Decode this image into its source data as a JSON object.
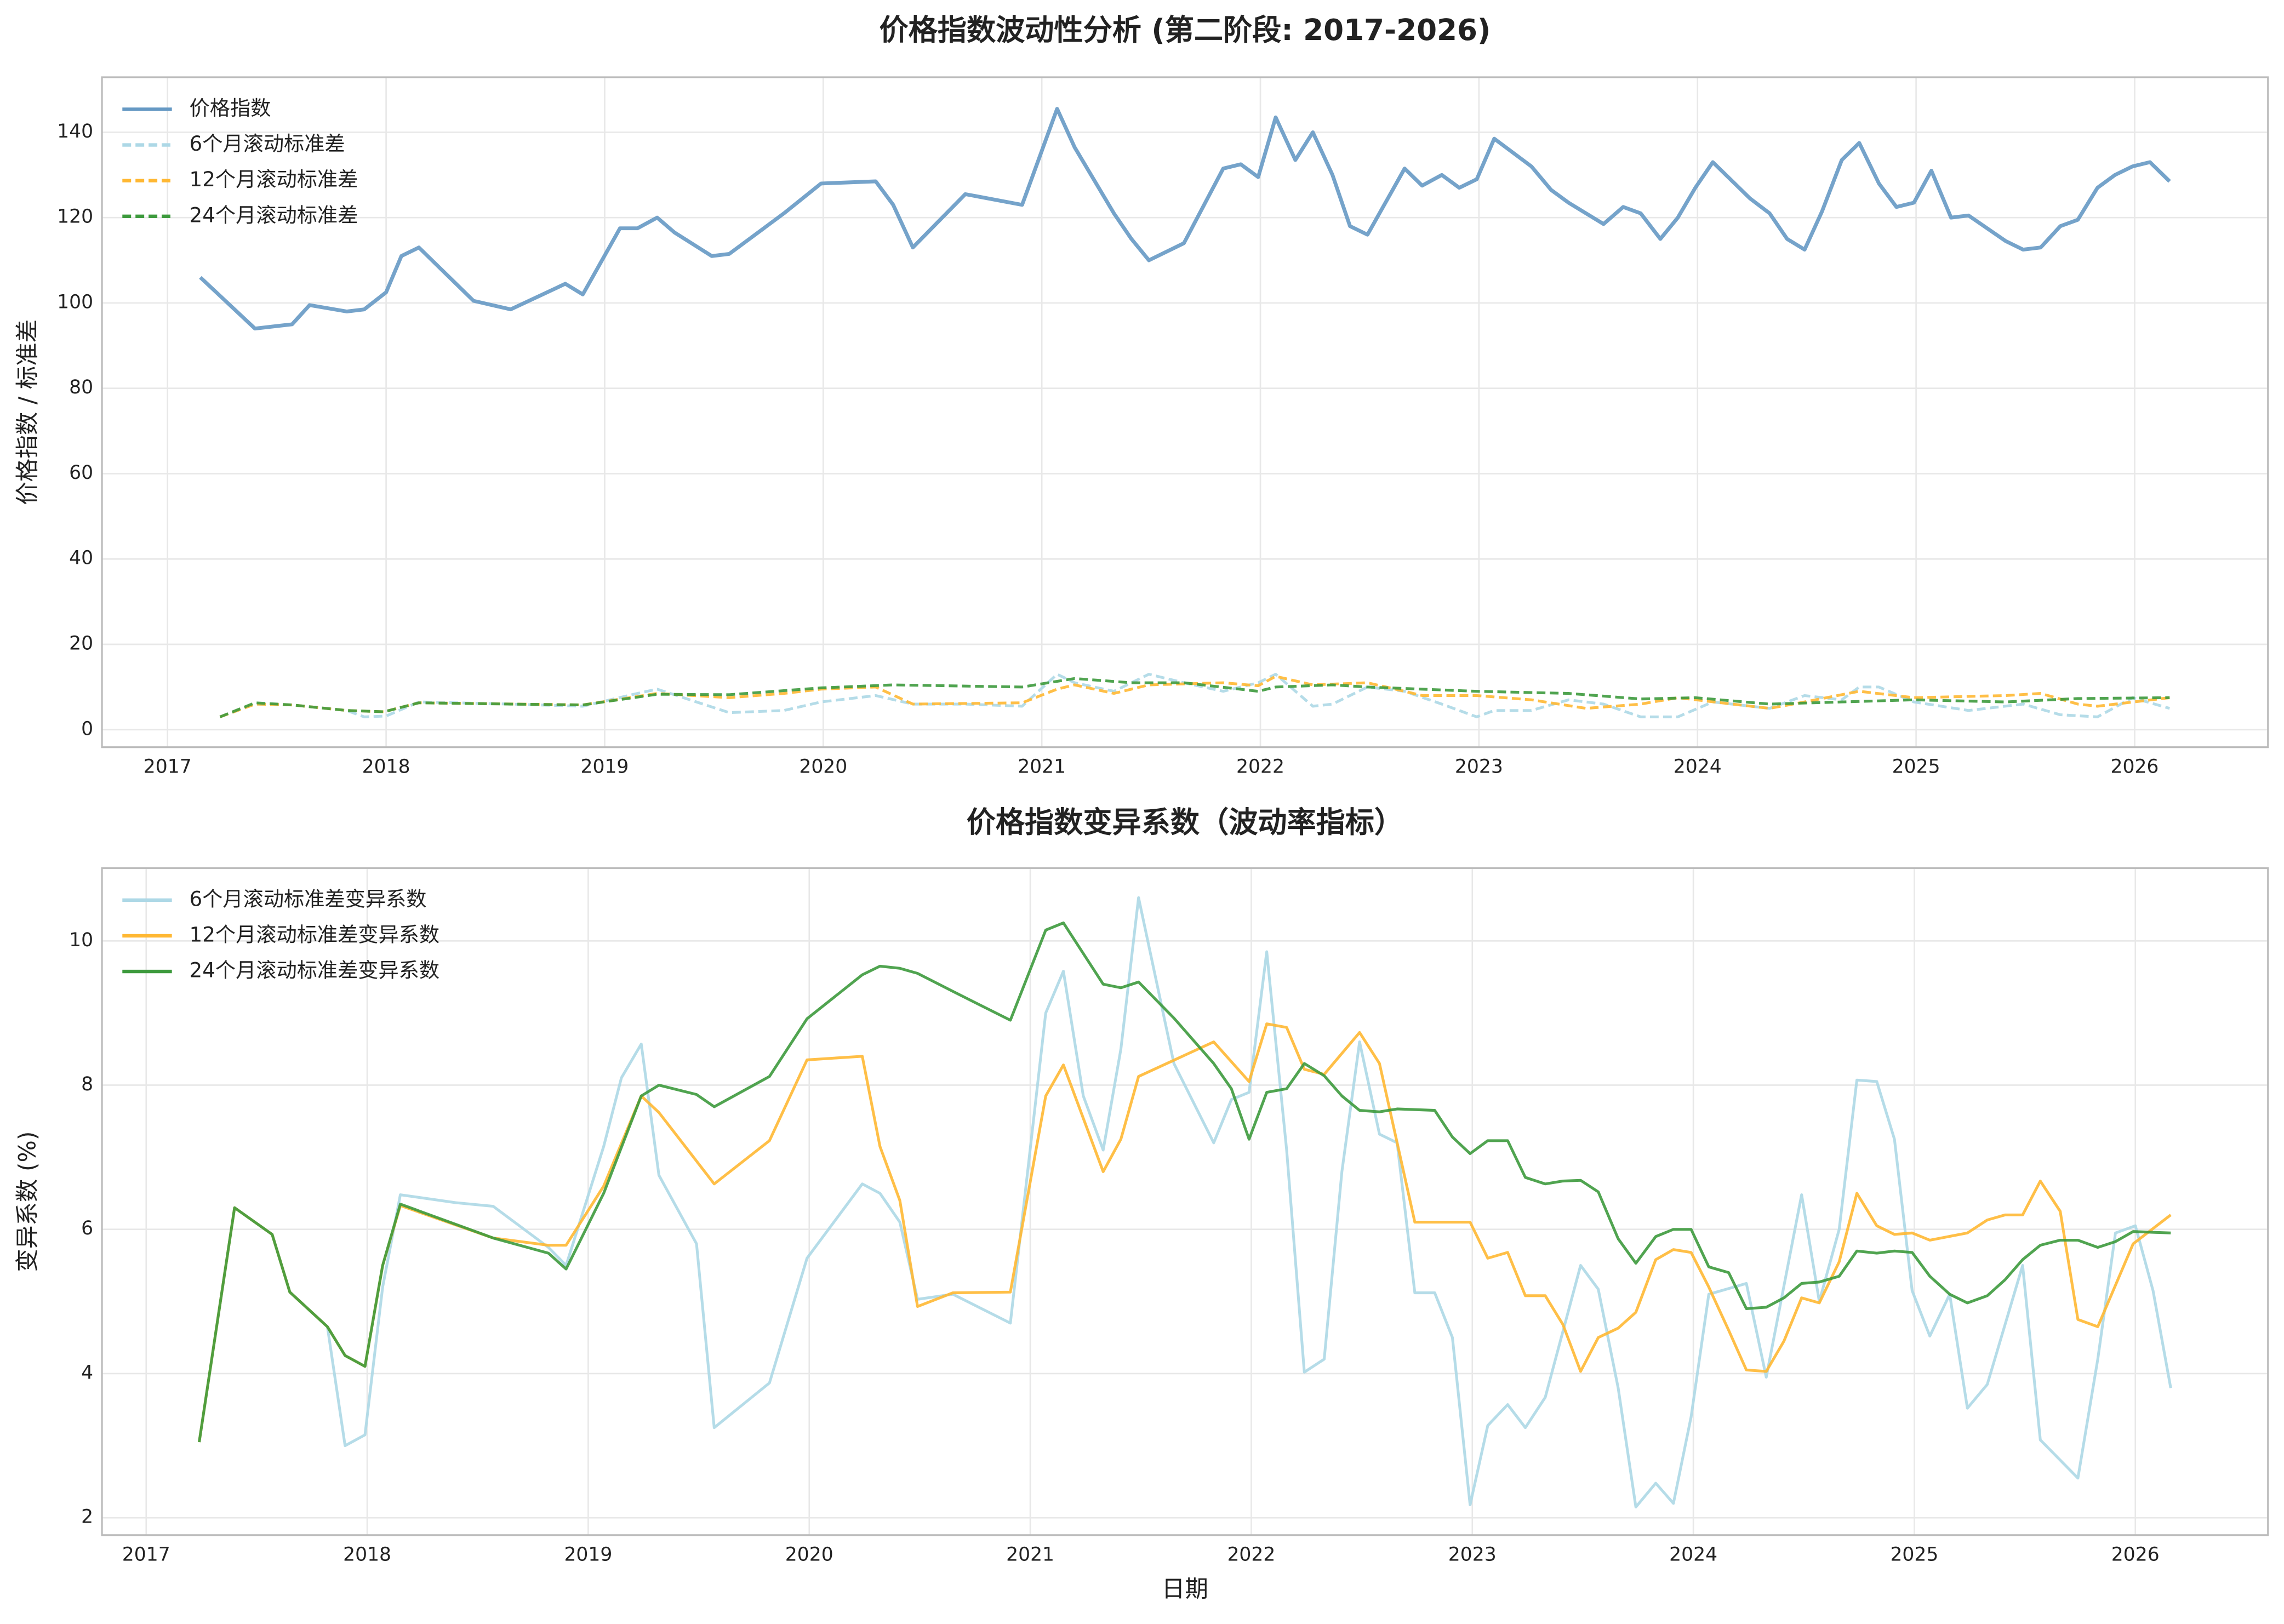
{
  "chart_data": [
    {
      "type": "line",
      "title": "价格指数波动性分析 (第二阶段: 2017-2026)",
      "ylabel": "价格指数 / 标准差",
      "xlim": [
        2016.7,
        2026.61
      ],
      "ylim": [
        -4.1,
        152.9
      ],
      "xticks": [
        2017,
        2018,
        2019,
        2020,
        2021,
        2022,
        2023,
        2024,
        2025,
        2026
      ],
      "yticks": [
        0,
        20,
        40,
        60,
        80,
        100,
        120,
        140
      ],
      "grid": true,
      "legend": "upper-left",
      "series": [
        {
          "name": "价格指数",
          "color": "#6699c4",
          "dash": false,
          "x": [
            2017.15,
            2017.4,
            2017.57,
            2017.65,
            2017.82,
            2017.9,
            2018.0,
            2018.07,
            2018.15,
            2018.4,
            2018.57,
            2018.82,
            2018.9,
            2019.07,
            2019.15,
            2019.24,
            2019.32,
            2019.49,
            2019.57,
            2019.82,
            2019.99,
            2020.24,
            2020.32,
            2020.41,
            2020.65,
            2020.91,
            2021.07,
            2021.15,
            2021.33,
            2021.41,
            2021.49,
            2021.65,
            2021.83,
            2021.91,
            2021.99,
            2022.07,
            2022.16,
            2022.24,
            2022.33,
            2022.41,
            2022.49,
            2022.66,
            2022.74,
            2022.83,
            2022.91,
            2022.99,
            2023.07,
            2023.24,
            2023.33,
            2023.41,
            2023.57,
            2023.66,
            2023.74,
            2023.83,
            2023.91,
            2023.99,
            2024.07,
            2024.16,
            2024.24,
            2024.33,
            2024.41,
            2024.49,
            2024.57,
            2024.66,
            2024.74,
            2024.83,
            2024.91,
            2024.99,
            2025.07,
            2025.16,
            2025.24,
            2025.41,
            2025.49,
            2025.57,
            2025.66,
            2025.74,
            2025.83,
            2025.91,
            2025.99,
            2026.07,
            2026.16
          ],
          "values": [
            106,
            94,
            95,
            99.5,
            98,
            98.5,
            102.5,
            111,
            113,
            100.5,
            98.5,
            104.5,
            102,
            117.5,
            117.5,
            120,
            116.5,
            111,
            111.5,
            121,
            128,
            128.5,
            123,
            113,
            125.5,
            123,
            145.5,
            136.5,
            121,
            115,
            110,
            114,
            131.5,
            132.5,
            129.5,
            143.5,
            133.5,
            140,
            130,
            118,
            116,
            131.5,
            127.5,
            130,
            127,
            129,
            138.5,
            132,
            126.5,
            123.5,
            118.5,
            122.5,
            121,
            115,
            120,
            127,
            133,
            128.5,
            124.5,
            121,
            115,
            112.5,
            121.5,
            133.5,
            137.5,
            128,
            122.5,
            123.5,
            131,
            120,
            120.5,
            114.5,
            112.5,
            113,
            118,
            119.5,
            127,
            130,
            132,
            133,
            128.5
          ]
        },
        {
          "name": "6个月滚动标准差",
          "color": "#add8e6",
          "dash": true,
          "x": [
            2017.24,
            2017.4,
            2017.57,
            2017.82,
            2017.9,
            2018.0,
            2018.15,
            2018.57,
            2018.9,
            2019.15,
            2019.24,
            2019.57,
            2019.82,
            2019.99,
            2020.24,
            2020.41,
            2020.65,
            2020.91,
            2021.07,
            2021.15,
            2021.33,
            2021.49,
            2021.65,
            2021.83,
            2021.99,
            2022.07,
            2022.24,
            2022.33,
            2022.49,
            2022.66,
            2022.83,
            2022.99,
            2023.07,
            2023.24,
            2023.41,
            2023.57,
            2023.74,
            2023.91,
            2024.07,
            2024.33,
            2024.49,
            2024.66,
            2024.74,
            2024.83,
            2024.99,
            2025.24,
            2025.49,
            2025.66,
            2025.83,
            2025.99,
            2026.16
          ],
          "values": [
            3,
            6,
            5.8,
            4.5,
            3,
            3.2,
            6.5,
            6,
            5.5,
            8.5,
            9.5,
            4,
            4.5,
            6.5,
            8,
            6,
            6,
            5.5,
            13,
            11,
            9,
            13,
            11,
            9,
            11,
            13,
            5.5,
            6,
            10,
            9,
            6,
            3,
            4.5,
            4.5,
            7,
            6,
            3,
            3,
            6.5,
            5,
            8,
            7,
            10,
            10,
            6.5,
            4.5,
            6,
            3.5,
            3,
            7.5,
            5
          ]
        },
        {
          "name": "12个月滚动标准差",
          "color": "#ffb833",
          "dash": true,
          "x": [
            2017.24,
            2017.4,
            2017.57,
            2017.82,
            2017.99,
            2018.15,
            2018.9,
            2019.24,
            2019.57,
            2019.82,
            2019.99,
            2020.24,
            2020.41,
            2020.91,
            2021.07,
            2021.15,
            2021.33,
            2021.49,
            2021.83,
            2021.99,
            2022.07,
            2022.24,
            2022.49,
            2022.66,
            2022.74,
            2022.99,
            2023.24,
            2023.49,
            2023.74,
            2023.91,
            2024.16,
            2024.33,
            2024.49,
            2024.74,
            2024.99,
            2025.41,
            2025.57,
            2025.74,
            2025.83,
            2026.16
          ],
          "values": [
            3,
            6,
            5.8,
            4.5,
            4.2,
            6.3,
            5.8,
            8.5,
            7.5,
            8.5,
            9.5,
            10,
            6,
            6.3,
            9.5,
            10.5,
            8.5,
            10.5,
            11,
            10.3,
            12.5,
            10.5,
            11,
            9,
            8,
            8,
            7,
            5,
            6,
            7.5,
            6,
            5,
            6.5,
            9,
            7.5,
            8,
            8.5,
            6,
            5.5,
            7.5
          ]
        },
        {
          "name": "24个月滚动标准差",
          "color": "#3d9a3d",
          "dash": true,
          "x": [
            2017.24,
            2017.4,
            2017.57,
            2017.82,
            2017.99,
            2018.15,
            2018.57,
            2018.9,
            2019.24,
            2019.57,
            2019.99,
            2020.32,
            2020.91,
            2021.15,
            2021.41,
            2021.65,
            2021.99,
            2022.07,
            2022.33,
            2022.49,
            2022.99,
            2023.41,
            2023.74,
            2023.99,
            2024.33,
            2024.66,
            2024.99,
            2025.41,
            2025.74,
            2026.16
          ],
          "values": [
            3,
            6.3,
            5.8,
            4.5,
            4.2,
            6.3,
            6,
            5.8,
            8.3,
            8.2,
            9.8,
            10.5,
            10,
            12,
            11,
            11,
            9,
            10,
            10.5,
            10,
            9,
            8.5,
            7.2,
            7.5,
            6,
            6.5,
            7,
            6.5,
            7.3,
            7.5
          ]
        }
      ]
    },
    {
      "type": "line",
      "title": "价格指数变异系数（波动率指标）",
      "xlabel": "日期",
      "ylabel": "变异系数 (%)",
      "xlim": [
        2016.8,
        2026.6
      ],
      "ylim": [
        1.76,
        11.01
      ],
      "xticks": [
        2017,
        2018,
        2019,
        2020,
        2021,
        2022,
        2023,
        2024,
        2025,
        2026
      ],
      "yticks": [
        2,
        4,
        6,
        8,
        10
      ],
      "grid": true,
      "legend": "upper-left",
      "series": [
        {
          "name": "6个月滚动标准差变异系数",
          "color": "#add8e6",
          "dash": false,
          "x": [
            2017.24,
            2017.4,
            2017.57,
            2017.65,
            2017.82,
            2017.9,
            2017.99,
            2018.07,
            2018.15,
            2018.4,
            2018.57,
            2018.82,
            2018.9,
            2019.07,
            2019.15,
            2019.24,
            2019.32,
            2019.49,
            2019.57,
            2019.82,
            2019.99,
            2020.24,
            2020.32,
            2020.41,
            2020.49,
            2020.65,
            2020.91,
            2021.07,
            2021.15,
            2021.24,
            2021.33,
            2021.41,
            2021.49,
            2021.65,
            2021.83,
            2021.91,
            2021.99,
            2022.07,
            2022.16,
            2022.24,
            2022.33,
            2022.41,
            2022.49,
            2022.58,
            2022.66,
            2022.74,
            2022.83,
            2022.91,
            2022.99,
            2023.07,
            2023.16,
            2023.24,
            2023.33,
            2023.49,
            2023.57,
            2023.66,
            2023.74,
            2023.83,
            2023.91,
            2023.99,
            2024.07,
            2024.24,
            2024.33,
            2024.49,
            2024.57,
            2024.66,
            2024.74,
            2024.83,
            2024.91,
            2024.99,
            2025.07,
            2025.16,
            2025.24,
            2025.33,
            2025.49,
            2025.57,
            2025.66,
            2025.74,
            2025.83,
            2025.91,
            2026.0,
            2026.08,
            2026.16
          ],
          "values": [
            3.05,
            6.3,
            5.93,
            5.13,
            4.65,
            3.0,
            3.15,
            5.2,
            6.48,
            6.37,
            6.32,
            5.75,
            5.5,
            7.15,
            8.1,
            8.57,
            6.75,
            5.8,
            3.25,
            3.87,
            5.6,
            6.63,
            6.5,
            6.1,
            5.03,
            5.1,
            4.7,
            9.0,
            9.58,
            7.85,
            7.1,
            8.5,
            10.6,
            8.3,
            7.2,
            7.8,
            7.9,
            9.85,
            7.1,
            4.02,
            4.2,
            6.8,
            8.6,
            7.32,
            7.2,
            5.12,
            5.12,
            4.5,
            2.18,
            3.28,
            3.57,
            3.25,
            3.67,
            5.5,
            5.17,
            3.8,
            2.15,
            2.48,
            2.2,
            3.4,
            5.1,
            5.25,
            3.95,
            6.48,
            5.0,
            6.0,
            8.07,
            8.05,
            7.25,
            5.15,
            4.52,
            5.1,
            3.52,
            3.85,
            5.5,
            3.08,
            2.8,
            2.55,
            4.2,
            5.95,
            6.05,
            5.15,
            3.8
          ]
        },
        {
          "name": "12个月滚动标准差变异系数",
          "color": "#ffb833",
          "dash": false,
          "x": [
            2017.24,
            2017.4,
            2017.57,
            2017.65,
            2017.82,
            2017.9,
            2017.99,
            2018.07,
            2018.15,
            2018.57,
            2018.82,
            2018.9,
            2019.07,
            2019.24,
            2019.32,
            2019.57,
            2019.82,
            2019.99,
            2020.24,
            2020.32,
            2020.41,
            2020.49,
            2020.65,
            2020.91,
            2021.07,
            2021.15,
            2021.33,
            2021.41,
            2021.49,
            2021.83,
            2021.99,
            2022.07,
            2022.16,
            2022.24,
            2022.33,
            2022.49,
            2022.58,
            2022.74,
            2022.99,
            2023.07,
            2023.16,
            2023.24,
            2023.33,
            2023.41,
            2023.49,
            2023.57,
            2023.66,
            2023.74,
            2023.83,
            2023.91,
            2023.99,
            2024.07,
            2024.16,
            2024.24,
            2024.33,
            2024.41,
            2024.49,
            2024.57,
            2024.66,
            2024.74,
            2024.83,
            2024.91,
            2024.99,
            2025.07,
            2025.24,
            2025.33,
            2025.41,
            2025.49,
            2025.57,
            2025.66,
            2025.74,
            2025.83,
            2025.99,
            2026.16
          ],
          "values": [
            3.05,
            6.3,
            5.93,
            5.13,
            4.65,
            4.25,
            4.1,
            5.5,
            6.33,
            5.88,
            5.78,
            5.78,
            6.6,
            7.85,
            7.62,
            6.63,
            7.23,
            8.35,
            8.4,
            7.15,
            6.4,
            4.93,
            5.12,
            5.13,
            7.85,
            8.28,
            6.8,
            7.25,
            8.12,
            8.6,
            8.05,
            8.85,
            8.8,
            8.22,
            8.15,
            8.73,
            8.3,
            6.1,
            6.1,
            5.6,
            5.68,
            5.08,
            5.08,
            4.68,
            4.03,
            4.5,
            4.63,
            4.85,
            5.58,
            5.72,
            5.68,
            5.2,
            4.6,
            4.05,
            4.03,
            4.45,
            5.05,
            4.98,
            5.55,
            6.5,
            6.05,
            5.93,
            5.95,
            5.85,
            5.95,
            6.13,
            6.2,
            6.2,
            6.67,
            6.25,
            4.75,
            4.65,
            5.8,
            6.2
          ]
        },
        {
          "name": "24个月滚动标准差变异系数",
          "color": "#3d9a3d",
          "dash": false,
          "x": [
            2017.24,
            2017.4,
            2017.57,
            2017.65,
            2017.82,
            2017.9,
            2017.99,
            2018.07,
            2018.15,
            2018.57,
            2018.82,
            2018.9,
            2019.07,
            2019.24,
            2019.32,
            2019.49,
            2019.57,
            2019.82,
            2019.99,
            2020.24,
            2020.32,
            2020.41,
            2020.49,
            2020.65,
            2020.91,
            2021.07,
            2021.15,
            2021.33,
            2021.41,
            2021.49,
            2021.65,
            2021.83,
            2021.91,
            2021.99,
            2022.07,
            2022.16,
            2022.24,
            2022.33,
            2022.41,
            2022.49,
            2022.58,
            2022.66,
            2022.83,
            2022.91,
            2022.99,
            2023.07,
            2023.16,
            2023.24,
            2023.33,
            2023.41,
            2023.49,
            2023.57,
            2023.66,
            2023.74,
            2023.83,
            2023.91,
            2023.99,
            2024.07,
            2024.16,
            2024.24,
            2024.33,
            2024.41,
            2024.49,
            2024.57,
            2024.66,
            2024.74,
            2024.83,
            2024.91,
            2024.99,
            2025.07,
            2025.16,
            2025.24,
            2025.33,
            2025.41,
            2025.49,
            2025.57,
            2025.66,
            2025.74,
            2025.83,
            2025.91,
            2025.99,
            2026.16
          ],
          "values": [
            3.05,
            6.3,
            5.93,
            5.13,
            4.65,
            4.25,
            4.1,
            5.5,
            6.35,
            5.88,
            5.67,
            5.45,
            6.5,
            7.85,
            8.0,
            7.87,
            7.7,
            8.12,
            8.92,
            9.53,
            9.65,
            9.62,
            9.55,
            9.3,
            8.9,
            10.15,
            10.25,
            9.4,
            9.35,
            9.43,
            8.93,
            8.3,
            7.95,
            7.25,
            7.9,
            7.95,
            8.3,
            8.13,
            7.85,
            7.65,
            7.63,
            7.67,
            7.65,
            7.28,
            7.05,
            7.23,
            7.23,
            6.72,
            6.63,
            6.67,
            6.68,
            6.52,
            5.87,
            5.53,
            5.9,
            6.0,
            6.0,
            5.48,
            5.4,
            4.9,
            4.92,
            5.05,
            5.25,
            5.27,
            5.35,
            5.7,
            5.67,
            5.7,
            5.68,
            5.35,
            5.1,
            4.98,
            5.08,
            5.3,
            5.58,
            5.78,
            5.85,
            5.85,
            5.75,
            5.83,
            5.97,
            5.95
          ]
        }
      ]
    }
  ]
}
